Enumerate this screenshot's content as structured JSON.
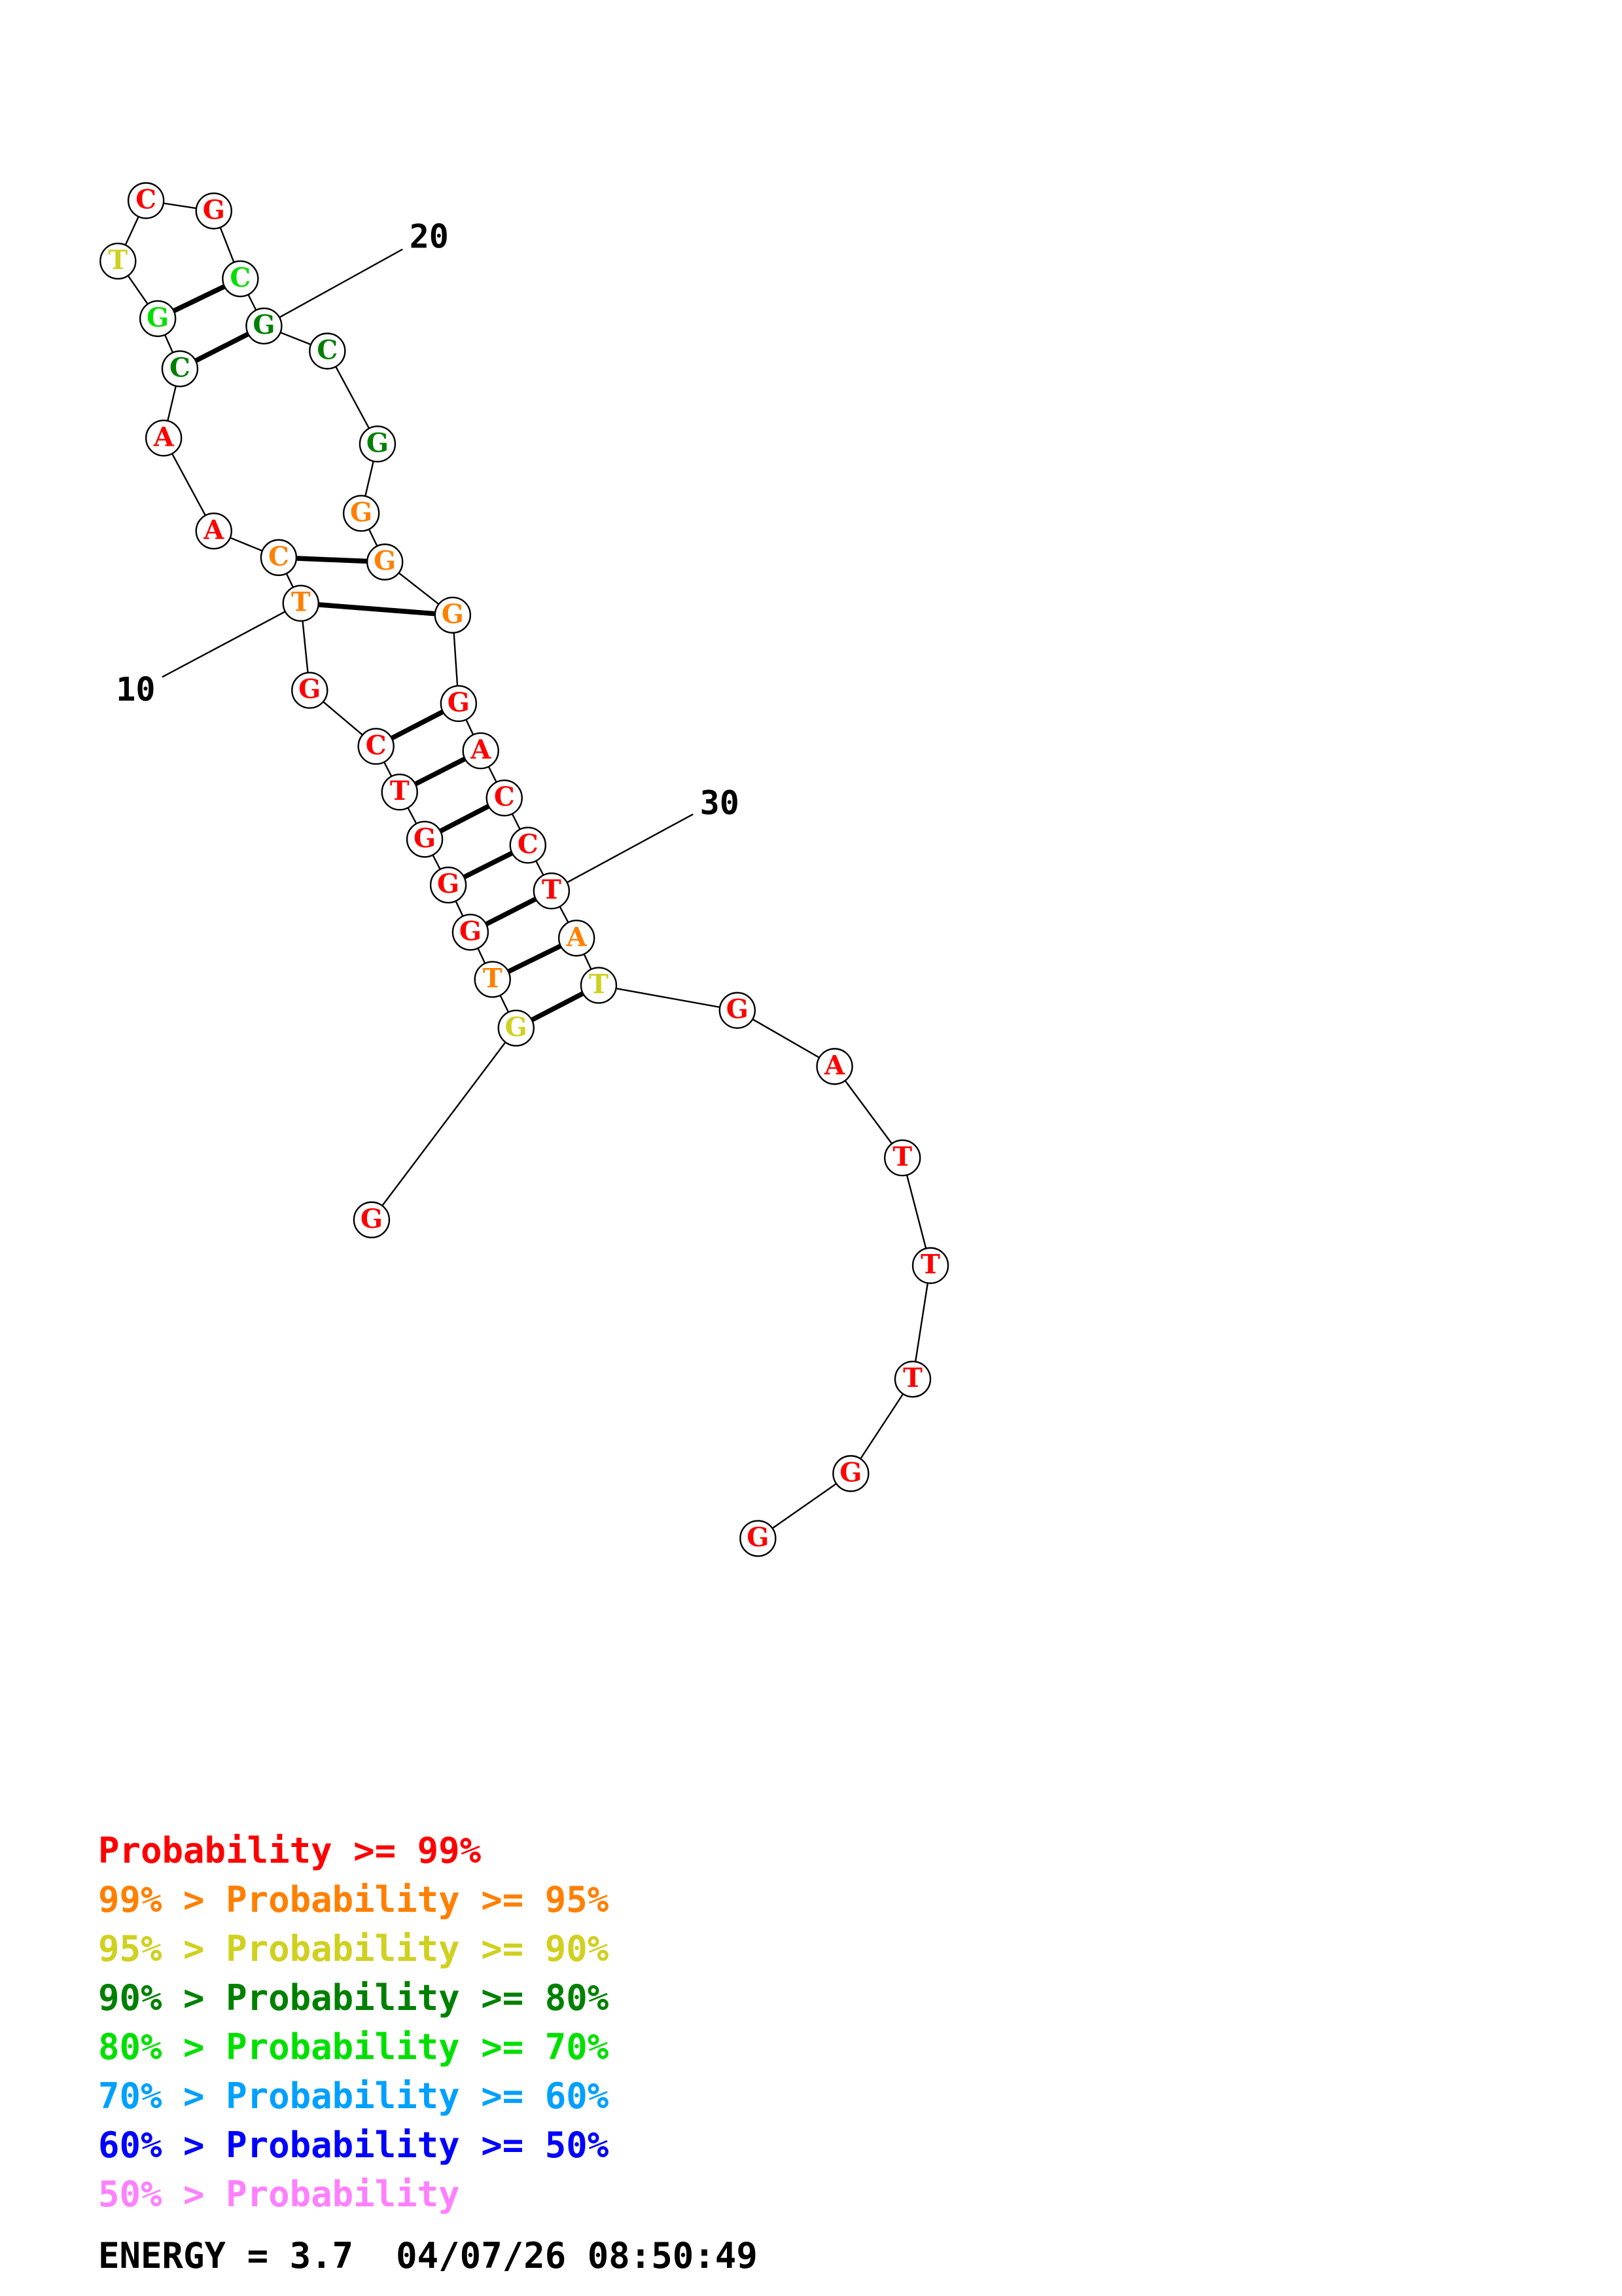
{
  "colors": {
    "red": "#ff0000",
    "orange": "#ff8000",
    "yellow": "#d0d020",
    "dark_green": "#008000",
    "green": "#00e000",
    "sky_blue": "#00a0ff",
    "blue": "#0000ff",
    "pink": "#ff80ff",
    "black": "#000000"
  },
  "nucleotides": [
    {
      "base": "G",
      "color": "red"
    },
    {
      "base": "G",
      "color": "yellow"
    },
    {
      "base": "T",
      "color": "orange"
    },
    {
      "base": "G",
      "color": "red"
    },
    {
      "base": "G",
      "color": "red"
    },
    {
      "base": "G",
      "color": "red"
    },
    {
      "base": "T",
      "color": "red"
    },
    {
      "base": "C",
      "color": "red"
    },
    {
      "base": "G",
      "color": "red"
    },
    {
      "base": "T",
      "color": "orange"
    },
    {
      "base": "C",
      "color": "orange"
    },
    {
      "base": "A",
      "color": "red"
    },
    {
      "base": "A",
      "color": "red"
    },
    {
      "base": "C",
      "color": "dark_green"
    },
    {
      "base": "G",
      "color": "green"
    },
    {
      "base": "T",
      "color": "yellow"
    },
    {
      "base": "C",
      "color": "red"
    },
    {
      "base": "G",
      "color": "red"
    },
    {
      "base": "C",
      "color": "green"
    },
    {
      "base": "G",
      "color": "dark_green"
    },
    {
      "base": "C",
      "color": "dark_green"
    },
    {
      "base": "G",
      "color": "dark_green"
    },
    {
      "base": "G",
      "color": "orange"
    },
    {
      "base": "G",
      "color": "orange"
    },
    {
      "base": "G",
      "color": "orange"
    },
    {
      "base": "G",
      "color": "red"
    },
    {
      "base": "A",
      "color": "red"
    },
    {
      "base": "C",
      "color": "red"
    },
    {
      "base": "C",
      "color": "red"
    },
    {
      "base": "T",
      "color": "red"
    },
    {
      "base": "A",
      "color": "orange"
    },
    {
      "base": "T",
      "color": "yellow"
    },
    {
      "base": "G",
      "color": "red"
    },
    {
      "base": "A",
      "color": "red"
    },
    {
      "base": "T",
      "color": "red"
    },
    {
      "base": "T",
      "color": "red"
    },
    {
      "base": "T",
      "color": "red"
    },
    {
      "base": "G",
      "color": "red"
    },
    {
      "base": "G",
      "color": "red"
    }
  ],
  "pairs": [
    [
      2,
      32
    ],
    [
      3,
      31
    ],
    [
      4,
      30
    ],
    [
      5,
      29
    ],
    [
      6,
      28
    ],
    [
      7,
      27
    ],
    [
      8,
      26
    ],
    [
      10,
      25
    ],
    [
      11,
      24
    ],
    [
      14,
      20
    ],
    [
      15,
      19
    ]
  ],
  "position_labels": [
    {
      "nt": 10,
      "text": "10"
    },
    {
      "nt": 20,
      "text": "20"
    },
    {
      "nt": 30,
      "text": "30"
    }
  ],
  "legend": [
    {
      "prefix": "",
      "text": "Probability >= 99%",
      "color": "red"
    },
    {
      "prefix": "99% > ",
      "text": "Probability >= 95%",
      "color": "orange"
    },
    {
      "prefix": "95% > ",
      "text": "Probability >= 90%",
      "color": "yellow"
    },
    {
      "prefix": "90% > ",
      "text": "Probability >= 80%",
      "color": "dark_green"
    },
    {
      "prefix": "80% > ",
      "text": "Probability >= 70%",
      "color": "green"
    },
    {
      "prefix": "70% > ",
      "text": "Probability >= 60%",
      "color": "sky_blue"
    },
    {
      "prefix": "60% > ",
      "text": "Probability >= 50%",
      "color": "blue"
    },
    {
      "prefix": "50% > ",
      "text": "Probability",
      "color": "pink"
    }
  ],
  "footer": {
    "energy": "ENERGY = 3.7  04/07/26 08:50:49"
  }
}
